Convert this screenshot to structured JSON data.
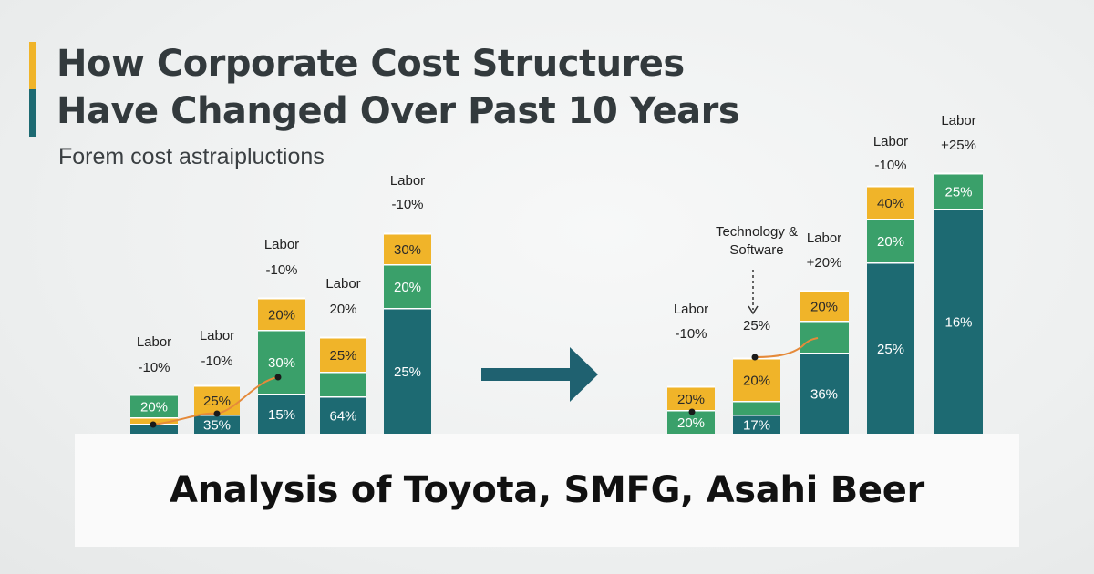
{
  "header": {
    "title_line1": "How Corporate Cost Structures",
    "title_line2": "Have Changed Over Past 10 Years",
    "subtitle": "Forem cost astraipluctions"
  },
  "banner": {
    "text": "Analysis of Toyota, SMFG, Asahi Beer"
  },
  "colors": {
    "yellow": "#f0b429",
    "green": "#3aa06a",
    "teal": "#1d6a72",
    "arrow": "#1f6170",
    "trend": "#e58a3a",
    "accent_yellow": "#f0b429",
    "accent_teal": "#1d6a72"
  },
  "chart_data": {
    "type": "bar",
    "title": "How Corporate Cost Structures Have Changed Over Past 10 Years",
    "stacked": true,
    "panels": [
      {
        "name": "before",
        "bars": [
          {
            "annotation": [
              "Labor",
              "-10%"
            ],
            "segments": [
              {
                "color": "teal",
                "label": ""
              },
              {
                "color": "yellow",
                "label": ""
              },
              {
                "color": "green",
                "label": "20%"
              }
            ]
          },
          {
            "annotation": [
              "Labor",
              "-10%"
            ],
            "segments": [
              {
                "color": "teal",
                "label": "35%"
              },
              {
                "color": "yellow",
                "label": "25%"
              }
            ]
          },
          {
            "annotation": [
              "Labor",
              "-10%"
            ],
            "segments": [
              {
                "color": "teal",
                "label": "15%"
              },
              {
                "color": "green",
                "label": "30%"
              },
              {
                "color": "yellow",
                "label": "20%"
              }
            ]
          },
          {
            "annotation": [
              "Labor",
              "20%"
            ],
            "segments": [
              {
                "color": "teal",
                "label": "64%"
              },
              {
                "color": "green",
                "label": ""
              },
              {
                "color": "yellow",
                "label": "25%"
              }
            ]
          },
          {
            "annotation": [
              "Labor",
              "-10%"
            ],
            "segments": [
              {
                "color": "teal",
                "label": "25%"
              },
              {
                "color": "green",
                "label": "20%"
              },
              {
                "color": "yellow",
                "label": "30%"
              }
            ]
          }
        ]
      },
      {
        "name": "after",
        "bars": [
          {
            "annotation": [
              "Labor",
              "-10%"
            ],
            "segments": [
              {
                "color": "green",
                "label": "20%"
              },
              {
                "color": "yellow",
                "label": "20%"
              }
            ]
          },
          {
            "annotation": [
              "Technology &",
              "Software",
              "25%"
            ],
            "segments": [
              {
                "color": "teal",
                "label": "17%"
              },
              {
                "color": "green",
                "label": ""
              },
              {
                "color": "yellow",
                "label": "20%"
              }
            ]
          },
          {
            "annotation": [
              "Labor",
              "+20%"
            ],
            "segments": [
              {
                "color": "teal",
                "label": "36%"
              },
              {
                "color": "green",
                "label": ""
              },
              {
                "color": "yellow",
                "label": "20%"
              }
            ]
          },
          {
            "annotation": [
              "Labor",
              "-10%"
            ],
            "segments": [
              {
                "color": "teal",
                "label": "25%"
              },
              {
                "color": "green",
                "label": "20%"
              },
              {
                "color": "yellow",
                "label": "40%"
              }
            ]
          },
          {
            "annotation": [
              "Labor",
              "+25%"
            ],
            "segments": [
              {
                "color": "teal",
                "label": "16%"
              },
              {
                "color": "green",
                "label": "25%"
              }
            ]
          }
        ]
      }
    ]
  }
}
